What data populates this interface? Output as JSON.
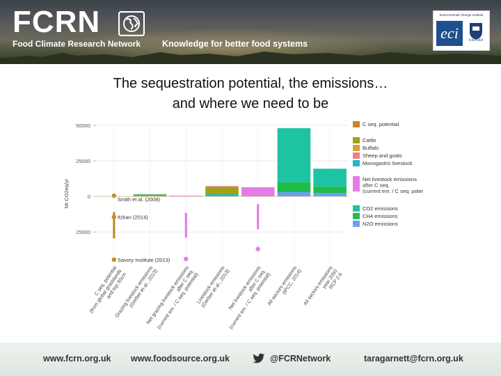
{
  "header": {
    "logo_text": "FCRN",
    "logo_subtitle": "Food Climate Research Network",
    "tagline": "Knowledge for better food systems",
    "partner": {
      "label": "Environmental Change Institute",
      "badge": "eci",
      "university": "OXFORD"
    }
  },
  "slide": {
    "title_line1": "The sequestration potential, the emissions…",
    "title_line2": "and where we need to be"
  },
  "chart_data": {
    "type": "bar",
    "ylabel": "Mt CO2eq/yr",
    "ylim": [
      -47000,
      51000
    ],
    "y_ticks": [
      {
        "value": 50000,
        "label": "50000"
      },
      {
        "value": 25000,
        "label": "25000"
      },
      {
        "value": 0,
        "label": "0"
      },
      {
        "value": -25000,
        "label": "25000"
      }
    ],
    "categories": [
      "C seq. potential\n(from global grasslands\nand top 30cm",
      "Grazing livestock emissions\n(Gerber et al., 2013)",
      "Net grazing livestock emissions\nafter C seq.\n(current em. / C seq. potential)",
      "Livestock emissions\n(Gerber et al., 2013)",
      "Net livestock emissions\nafter C seq.\n(current em. / C seq. potential)",
      "All sectors emissions\n(IPCC, 2014)",
      "All sectors emissions\nyear 2050\nRCP 2.6"
    ],
    "stacks": [
      {
        "category": 1,
        "parts": [
          {
            "series": "Cattle",
            "value": 1100
          },
          {
            "series": "Buffalo",
            "value": 200
          },
          {
            "series": "Monogastric livestock",
            "value": 300
          }
        ]
      },
      {
        "category": 2,
        "parts": [
          {
            "series": "Net livestock emissions after C seq.",
            "value": 500
          }
        ]
      },
      {
        "category": 3,
        "parts": [
          {
            "series": "Monogastric livestock",
            "value": 1500
          },
          {
            "series": "Cattle",
            "value": 5200
          },
          {
            "series": "Sheep and goats",
            "value": 600
          }
        ]
      },
      {
        "category": 4,
        "parts": [
          {
            "series": "Net livestock emissions after C seq.",
            "value": 6500
          }
        ]
      },
      {
        "category": 5,
        "parts": [
          {
            "series": "N2O emissions",
            "value": 3000
          },
          {
            "series": "CH4 emissions",
            "value": 7000
          },
          {
            "series": "CO2 emissions",
            "value": 38000
          }
        ]
      },
      {
        "category": 6,
        "parts": [
          {
            "series": "N2O emissions",
            "value": 2500
          },
          {
            "series": "CH4 emissions",
            "value": 4500
          },
          {
            "series": "CO2 emissions",
            "value": 12500
          }
        ]
      }
    ],
    "ranges": [
      {
        "category": 0,
        "from": -11000,
        "to": -29500,
        "series": "C seq. potential",
        "label": "Smith et al. (2008)"
      },
      {
        "category": 2,
        "from": -11500,
        "to": -29000,
        "series": "Net livestock emissions after C seq."
      },
      {
        "category": 4,
        "from": -5500,
        "to": -23000,
        "series": "Net livestock emissions after C seq."
      }
    ],
    "points": [
      {
        "category": 0,
        "value": 500,
        "series": "C seq. potential",
        "label": "Smith et al. (2008)"
      },
      {
        "category": 0,
        "value": -14500,
        "series": "C seq. potential",
        "label": "Itzkan (2014)"
      },
      {
        "category": 0,
        "value": -44500,
        "series": "C seq. potential",
        "label": "Savory Institute (2013)"
      },
      {
        "category": 2,
        "value": -44000,
        "series": "Net livestock emissions after C seq."
      },
      {
        "category": 4,
        "value": -37000,
        "series": "Net livestock emissions after C seq."
      }
    ],
    "legend": [
      {
        "name": "C seq. potential",
        "color": "#c38a24"
      },
      {
        "spacer": true
      },
      {
        "name": "Cattle",
        "color": "#9ea317"
      },
      {
        "name": "Buffalo",
        "color": "#d5a22c"
      },
      {
        "name": "Sheep and goats",
        "color": "#ee7f83"
      },
      {
        "name": "Monogastric livestock",
        "color": "#22b7c9"
      },
      {
        "spacer": true
      },
      {
        "name": "Net livestock emissions\nafter C seq.\n(current em. / C seq. potential)",
        "color": "#e57ce6"
      },
      {
        "spacer": true
      },
      {
        "name": "CO2 emissions",
        "color": "#1dc3a3"
      },
      {
        "name": "CH4 emissions",
        "color": "#1fbc4b"
      },
      {
        "name": "N2O emissions",
        "color": "#6b9ef0"
      }
    ],
    "legend_position": "right",
    "grid": true
  },
  "footer": {
    "website1": "www.fcrn.org.uk",
    "website2": "www.foodsource.org.uk",
    "twitter": "@FCRNetwork",
    "email": "taragarnett@fcrn.org.uk"
  }
}
